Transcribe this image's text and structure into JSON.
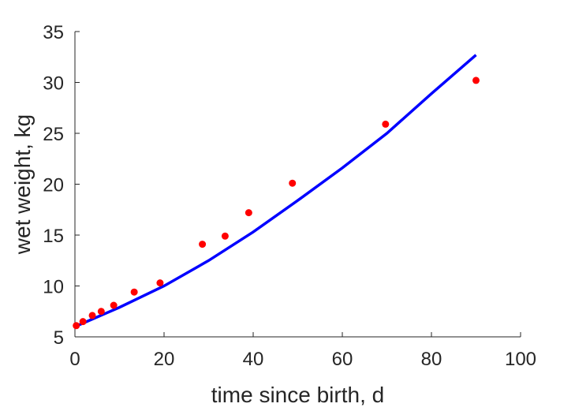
{
  "chart_data": {
    "type": "scatter",
    "title": "",
    "xlabel": "time since birth, d",
    "ylabel": "wet weight, kg",
    "xlim": [
      0,
      100
    ],
    "ylim": [
      5,
      35
    ],
    "xticks": [
      0,
      20,
      40,
      60,
      80,
      100
    ],
    "yticks": [
      5,
      10,
      15,
      20,
      25,
      30,
      35
    ],
    "xtick_labels": [
      "0",
      "20",
      "40",
      "60",
      "80",
      "100"
    ],
    "ytick_labels": [
      "5",
      "10",
      "15",
      "20",
      "25",
      "30",
      "35"
    ],
    "grid": false,
    "series": [
      {
        "kind": "points",
        "color": "#ff0000",
        "x": [
          0.3,
          1.8,
          3.9,
          5.9,
          8.7,
          13.3,
          19.1,
          28.6,
          33.7,
          39.0,
          48.8,
          69.7,
          90.0
        ],
        "y": [
          6.1,
          6.5,
          7.1,
          7.5,
          8.1,
          9.4,
          10.3,
          14.1,
          14.9,
          17.2,
          20.1,
          25.9,
          30.2
        ]
      },
      {
        "kind": "line",
        "color": "#0000ff",
        "x": [
          0,
          10,
          20,
          30,
          40,
          50,
          60,
          70,
          80,
          90
        ],
        "y": [
          6.0,
          7.9,
          10.0,
          12.5,
          15.3,
          18.4,
          21.6,
          25.0,
          28.9,
          32.7
        ]
      }
    ]
  }
}
